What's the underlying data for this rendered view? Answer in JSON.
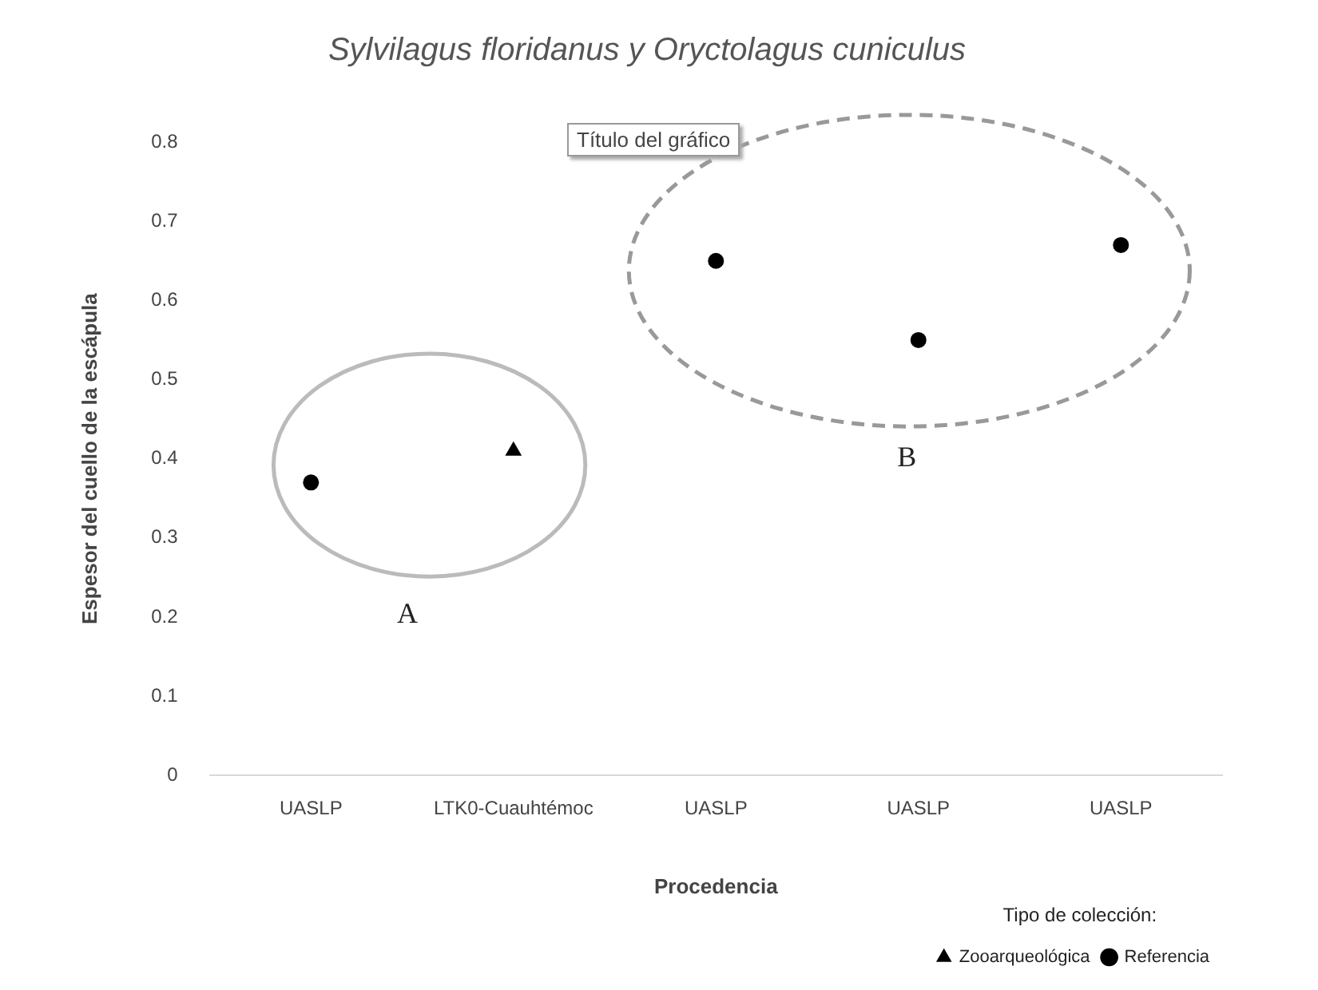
{
  "chart_data": {
    "type": "scatter",
    "title": "Sylvilagus floridanus y Oryctolagus cuniculus",
    "xlabel": "Procedencia",
    "ylabel": "Espesor del cuello de la escápula",
    "legend_title": "Tipo de colección:",
    "categories": [
      "UASLP",
      "LTK0-Cuauhtémoc",
      "UASLP",
      "UASLP",
      "UASLP"
    ],
    "series": [
      {
        "name": "Zooarqueológica",
        "color": "#000000",
        "marker": "triangle",
        "values": [
          null,
          0.41,
          null,
          null,
          null
        ]
      },
      {
        "name": "Referencia",
        "color": "#000000",
        "marker": "circle",
        "values": [
          0.37,
          null,
          0.65,
          0.55,
          0.67
        ]
      }
    ],
    "ylim": [
      0,
      0.8
    ],
    "yticks": [
      0,
      0.1,
      0.2,
      0.3,
      0.4,
      0.5,
      0.6,
      0.7,
      0.8
    ],
    "grid": false,
    "legend": "bottom right",
    "annotations": [
      "Título del gráfico",
      "A",
      "B"
    ]
  }
}
